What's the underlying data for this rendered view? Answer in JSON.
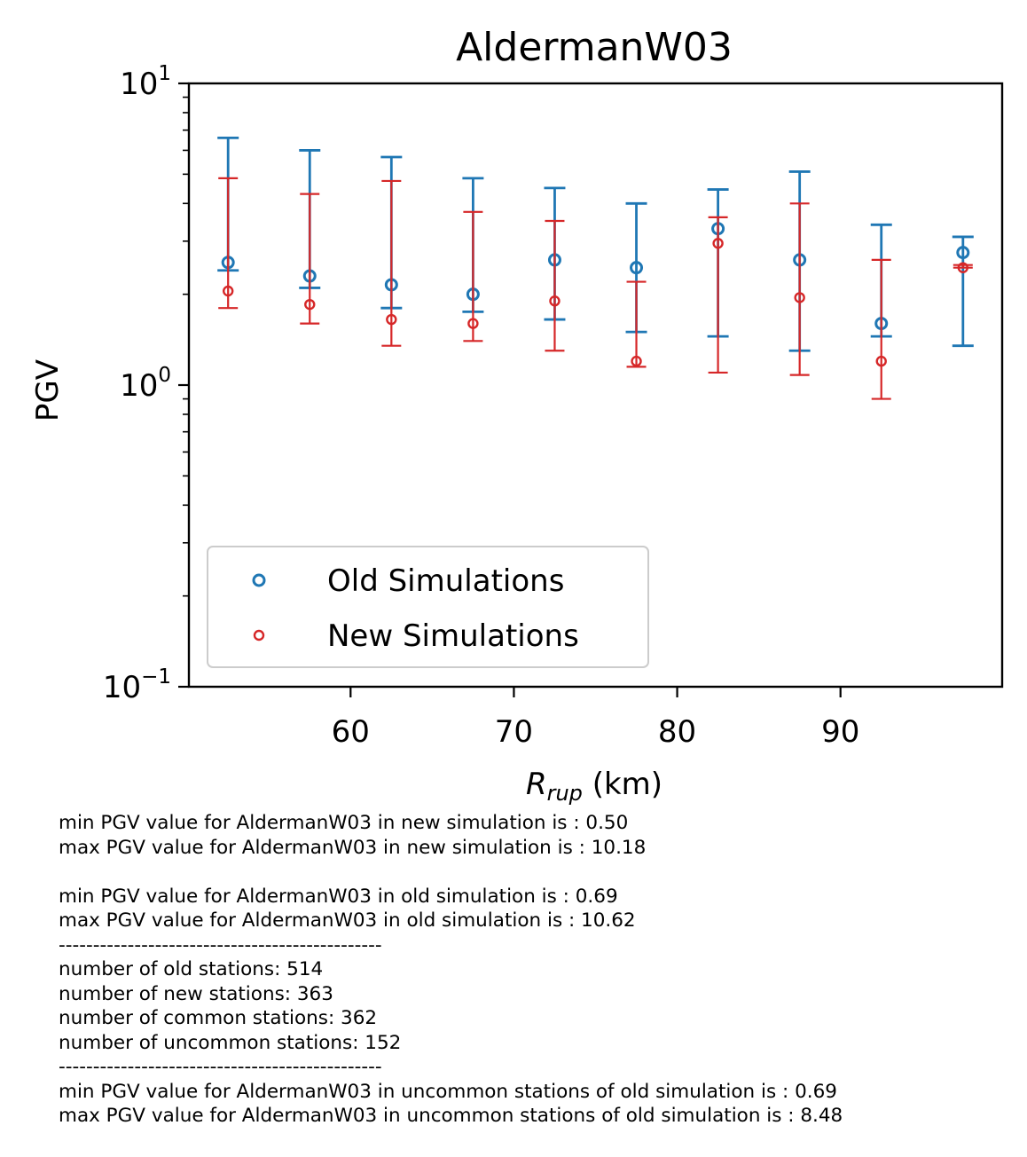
{
  "chart_data": {
    "type": "scatter",
    "title": "AldermanW03",
    "xlabel_main": "R",
    "xlabel_sub": "rup",
    "xlabel_unit": " (km)",
    "ylabel": "PGV",
    "yscale": "log",
    "xlim": [
      50.1,
      99.9
    ],
    "ylim": [
      0.1,
      10
    ],
    "x_ticks": [
      60,
      70,
      80,
      90
    ],
    "y_ticks": [
      {
        "value": 0.1,
        "base": "10",
        "exp": "−1"
      },
      {
        "value": 1,
        "base": "10",
        "exp": "0"
      },
      {
        "value": 10,
        "base": "10",
        "exp": "1"
      }
    ],
    "grid": false,
    "legend_position": "lower-left",
    "series": [
      {
        "name": "Old Simulations",
        "color": "#1f77b4",
        "points": [
          {
            "x": 52.5,
            "y": 2.55,
            "lo": 2.4,
            "hi": 6.6
          },
          {
            "x": 57.5,
            "y": 2.3,
            "lo": 2.1,
            "hi": 6.0
          },
          {
            "x": 62.5,
            "y": 2.15,
            "lo": 1.8,
            "hi": 5.7
          },
          {
            "x": 67.5,
            "y": 2.0,
            "lo": 1.75,
            "hi": 4.85
          },
          {
            "x": 72.5,
            "y": 2.6,
            "lo": 1.65,
            "hi": 4.5
          },
          {
            "x": 77.5,
            "y": 2.45,
            "lo": 1.5,
            "hi": 4.0
          },
          {
            "x": 82.5,
            "y": 3.3,
            "lo": 1.45,
            "hi": 4.45
          },
          {
            "x": 87.5,
            "y": 2.6,
            "lo": 1.3,
            "hi": 5.1
          },
          {
            "x": 92.5,
            "y": 1.6,
            "lo": 1.45,
            "hi": 3.4
          },
          {
            "x": 97.5,
            "y": 2.75,
            "lo": 1.35,
            "hi": 3.1
          }
        ]
      },
      {
        "name": "New Simulations",
        "color": "#d62728",
        "points": [
          {
            "x": 52.5,
            "y": 2.05,
            "lo": 1.8,
            "hi": 4.85
          },
          {
            "x": 57.5,
            "y": 1.85,
            "lo": 1.6,
            "hi": 4.3
          },
          {
            "x": 62.5,
            "y": 1.65,
            "lo": 1.35,
            "hi": 4.75
          },
          {
            "x": 67.5,
            "y": 1.6,
            "lo": 1.4,
            "hi": 3.75
          },
          {
            "x": 72.5,
            "y": 1.9,
            "lo": 1.3,
            "hi": 3.5
          },
          {
            "x": 77.5,
            "y": 1.2,
            "lo": 1.15,
            "hi": 2.2
          },
          {
            "x": 82.5,
            "y": 2.95,
            "lo": 1.1,
            "hi": 3.6
          },
          {
            "x": 87.5,
            "y": 1.95,
            "lo": 1.08,
            "hi": 4.0
          },
          {
            "x": 92.5,
            "y": 1.2,
            "lo": 0.9,
            "hi": 2.6
          },
          {
            "x": 97.5,
            "y": 2.45,
            "lo": 2.45,
            "hi": 2.5
          }
        ]
      }
    ]
  },
  "notes": [
    "min PGV value for AldermanW03 in new simulation is : 0.50",
    "max PGV value for AldermanW03 in new simulation is : 10.18",
    "",
    "min PGV value for AldermanW03 in old simulation is : 0.69",
    "max PGV value for AldermanW03 in old simulation is : 10.62",
    "-----------------------------------------------",
    "number of old stations: 514",
    "number of new stations: 363",
    "number of common stations: 362",
    "number of uncommon stations: 152",
    "-----------------------------------------------",
    "min PGV value for AldermanW03 in uncommon stations of old simulation is : 0.69",
    "max PGV value for AldermanW03 in uncommon stations of old simulation is : 8.48"
  ]
}
